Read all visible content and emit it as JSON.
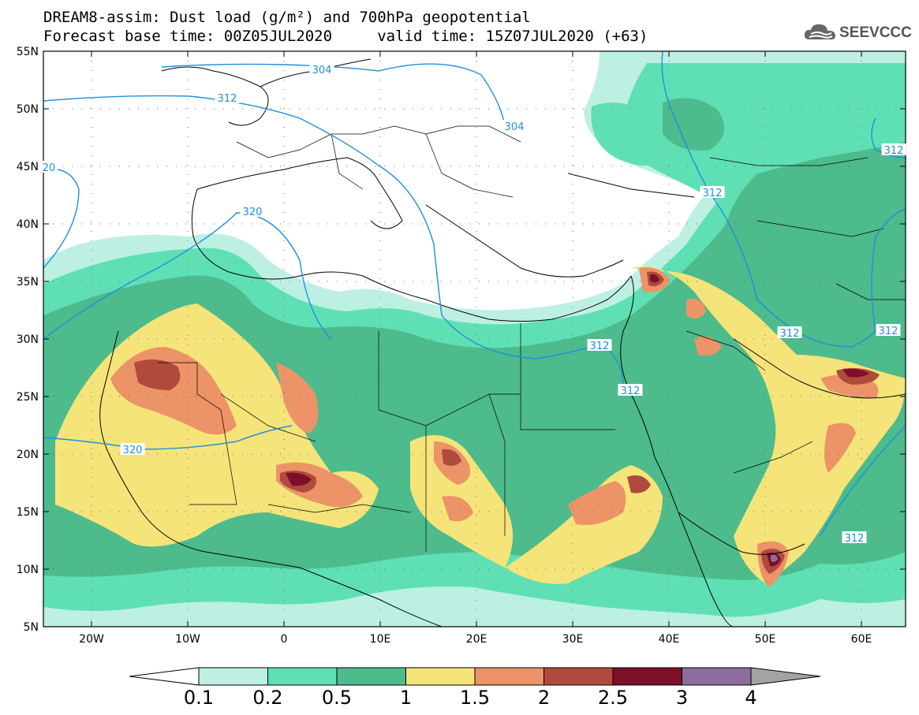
{
  "map": {
    "title_line1": "DREAM8-assim: Dust load (g/m²) and 700hPa geopotential",
    "title_line2": "Forecast base time: 00Z05JUL2020     valid time: 15Z07JUL2020 (+63)",
    "logo_text": "SEEVCCC",
    "lat_labels": [
      "55N",
      "50N",
      "45N",
      "40N",
      "35N",
      "30N",
      "25N",
      "20N",
      "15N",
      "10N",
      "5N"
    ],
    "lon_labels": [
      "20W",
      "10W",
      "0",
      "10E",
      "20E",
      "30E",
      "40E",
      "50E",
      "60E"
    ],
    "contour_labels": [
      "304",
      "312",
      "304",
      "20",
      "320",
      "312",
      "312",
      "312",
      "312",
      "312",
      "320",
      "312",
      "312"
    ],
    "colorbar": {
      "ticks": [
        "0.1",
        "0.2",
        "0.5",
        "1",
        "1.5",
        "2",
        "2.5",
        "3",
        "4"
      ],
      "colors": [
        "#bdf0e3",
        "#5fe0b4",
        "#4dbb8c",
        "#f5e47a",
        "#ec9367",
        "#b04a3c",
        "#7e0f2a",
        "#8c6d9e"
      ],
      "under_color": "#ffffff",
      "over_color": "#a3a3a3"
    },
    "colors": {
      "land_line": "#000000",
      "contour": "#1e90e0",
      "label_text": "#1e90e0"
    }
  }
}
